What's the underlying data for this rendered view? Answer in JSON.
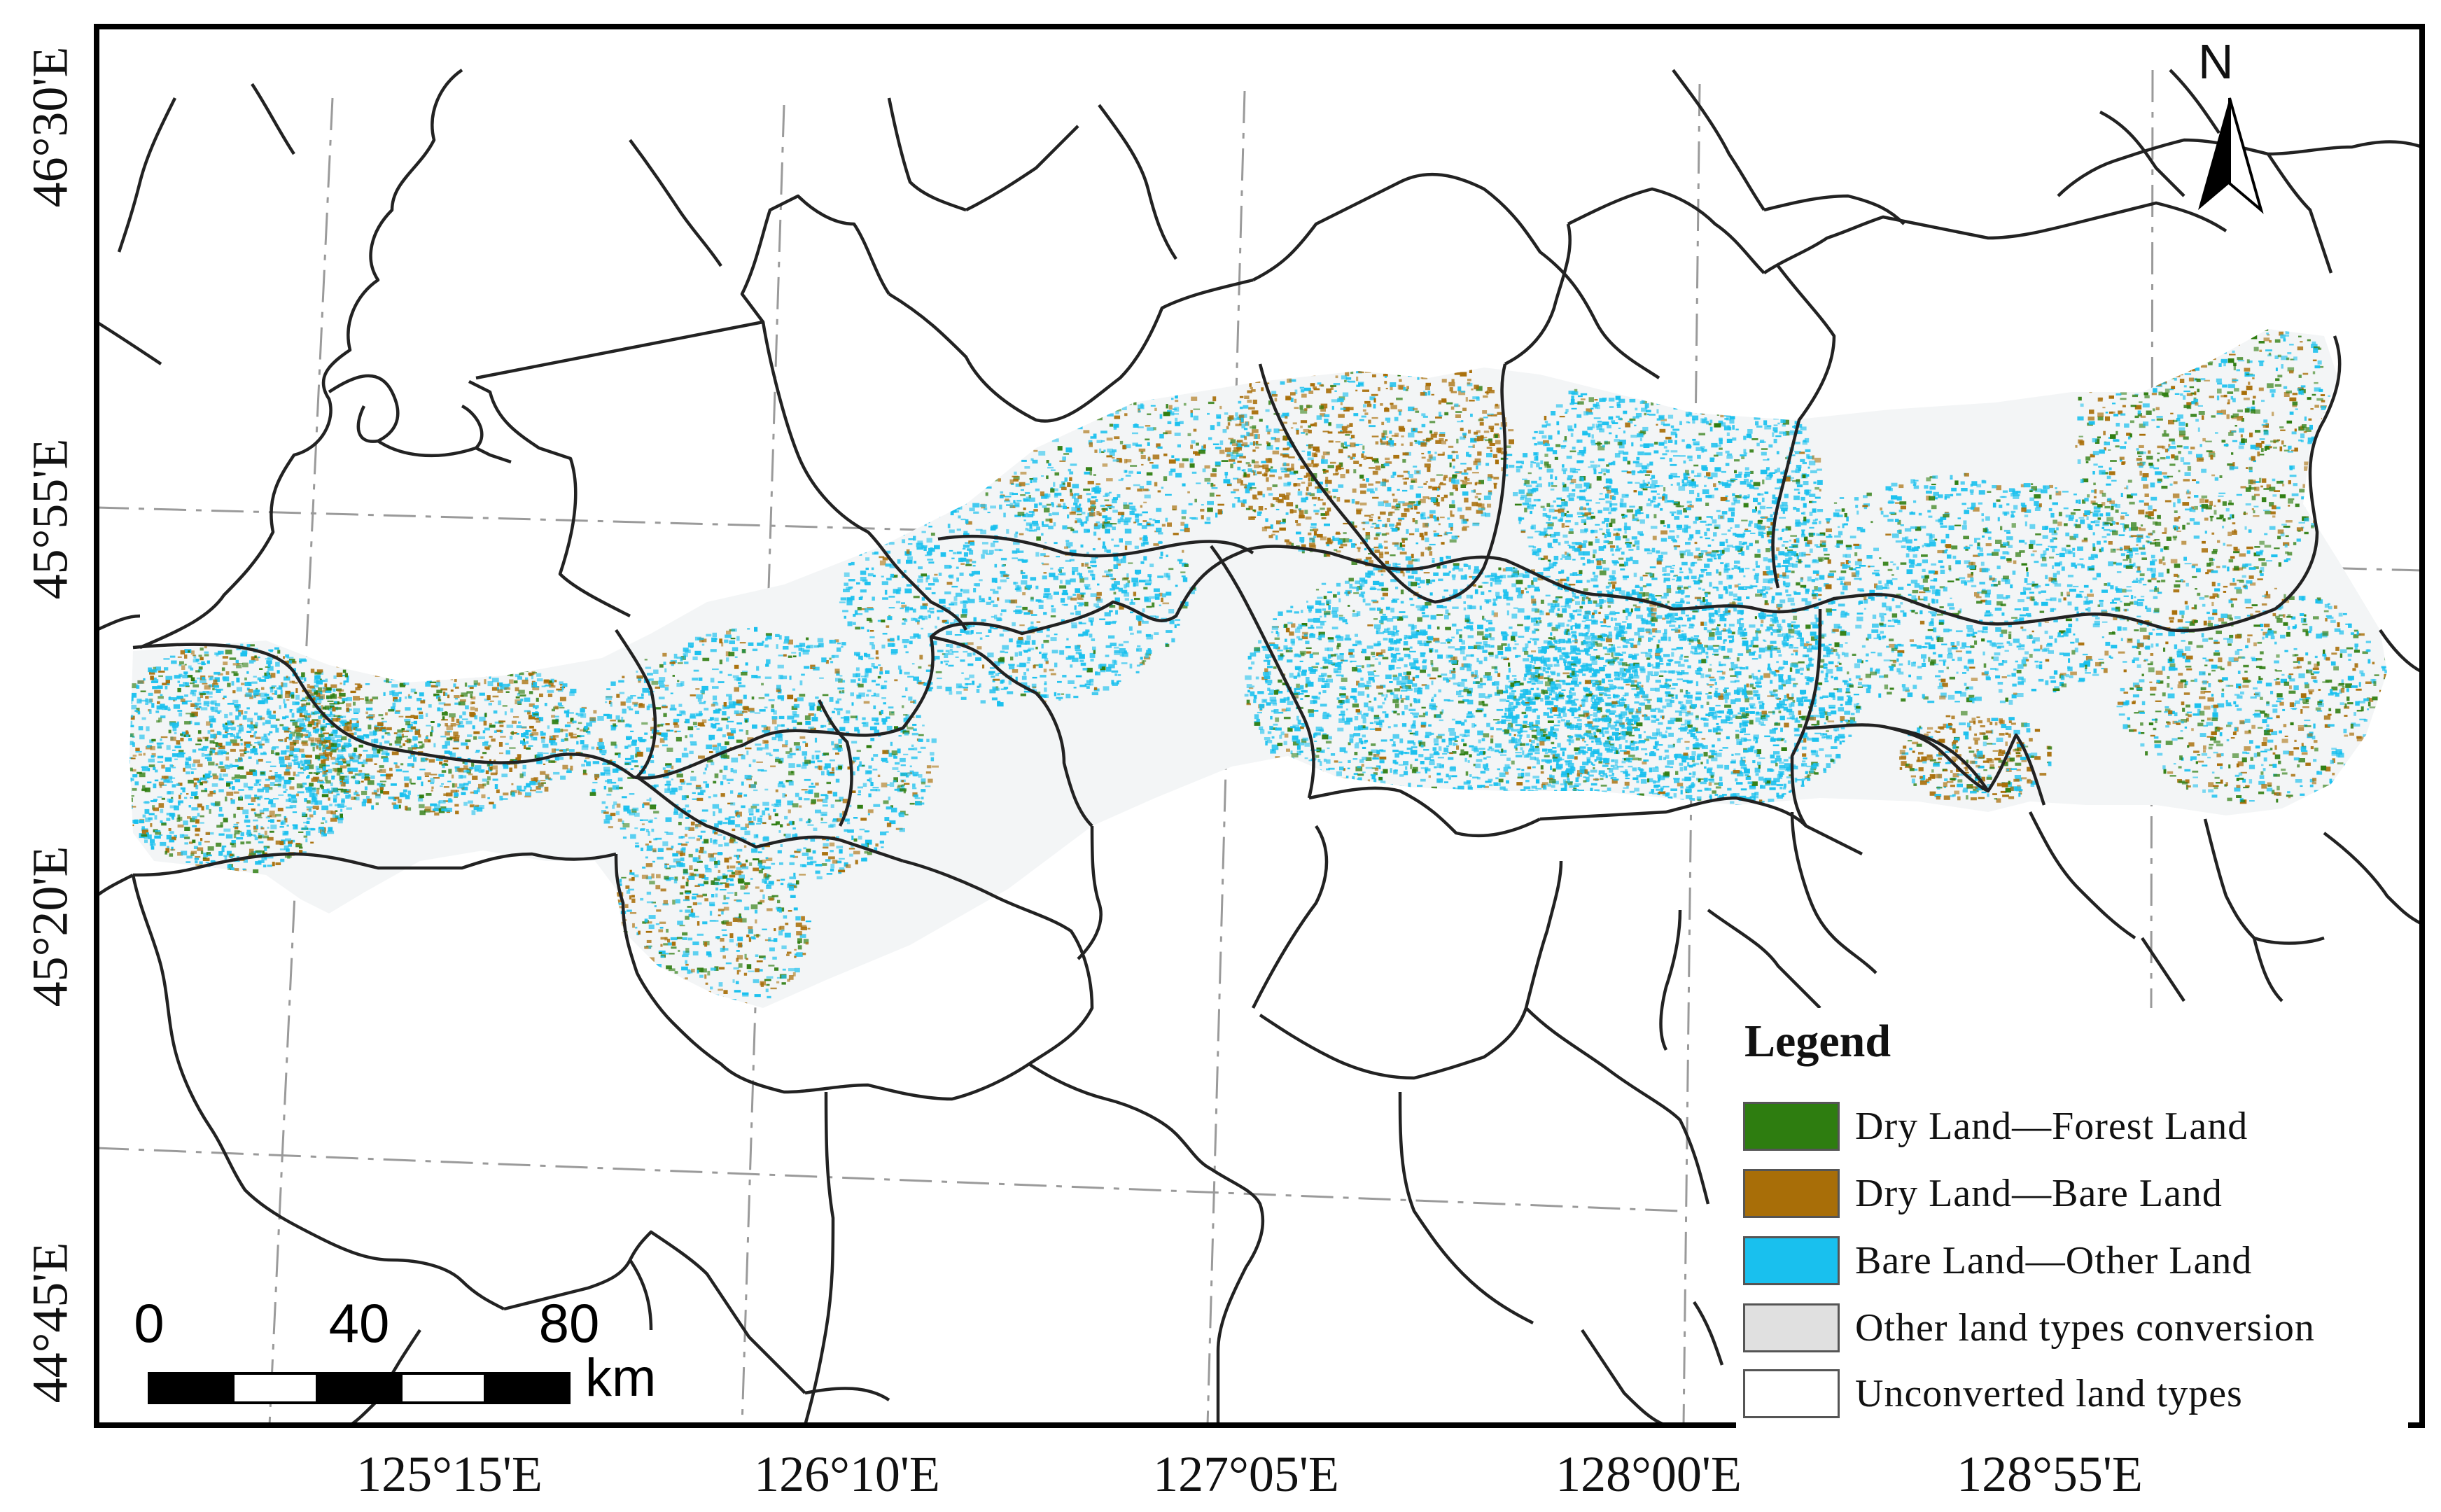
{
  "map": {
    "longitude_labels": [
      "125°15'E",
      "126°10'E",
      "127°05'E",
      "128°00'E",
      "128°55'E"
    ],
    "latitude_labels": [
      "46°30'E",
      "45°55'E",
      "45°20'E",
      "44°45'E"
    ],
    "north_arrow_label": "N",
    "scale_bar": {
      "ticks": [
        "0",
        "40",
        "80"
      ],
      "unit": "km"
    },
    "colors": {
      "dry_to_forest": "#2e7d10",
      "dry_to_bare": "#a86e08",
      "bare_to_other": "#19c0ee",
      "other_conversion": "#e0e0e0",
      "unconverted": "#ffffff",
      "boundary": "#222222"
    }
  },
  "legend": {
    "title": "Legend",
    "items": [
      {
        "label": "Dry Land—Forest Land",
        "color": "#2e7d10"
      },
      {
        "label": "Dry Land—Bare Land",
        "color": "#a86e08"
      },
      {
        "label": "Bare Land—Other Land",
        "color": "#19c0ee"
      },
      {
        "label": "Other land types conversion",
        "color": "#e0e0e0"
      },
      {
        "label": "Unconverted land types",
        "color": "#ffffff"
      }
    ]
  }
}
